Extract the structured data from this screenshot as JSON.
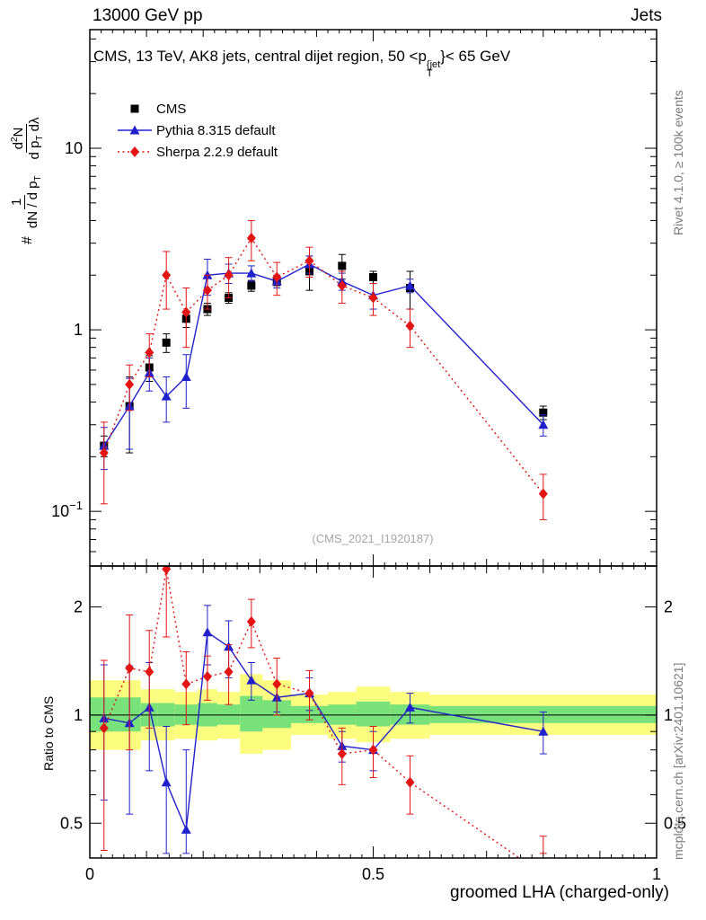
{
  "header": {
    "left": "13000 GeV pp",
    "right": "Jets"
  },
  "title": {
    "prefix": "CMS, 13 TeV, AK8 jets, central dijet region, 50 <p",
    "sup": "{jet",
    "sub": "T",
    "suffix": "}< 65 GeV"
  },
  "legend": [
    {
      "label": "CMS",
      "marker": "square",
      "color": "#000000",
      "line": "none"
    },
    {
      "label": "Pythia 8.315 default",
      "marker": "triangle",
      "color": "#2121cc",
      "line": "solid"
    },
    {
      "label": "Sherpa 2.2.9 default",
      "marker": "diamond",
      "color": "#e31414",
      "line": "dotted"
    }
  ],
  "watermark": "(CMS_2021_I1920187)",
  "side_notes": {
    "top": "Rivet 4.1.0, ≥ 100k events",
    "bottom": "mcplots.cern.ch [arXiv:2401.10621]"
  },
  "axes": {
    "xlabel": "groomed LHA (charged-only)",
    "ratio_ylabel": "Ratio to CMS",
    "ylabel": {
      "prefix": "#",
      "f1_num": "1",
      "f1_den_a": "dN / d p",
      "f1_den_sub": "T",
      "f2_num_a": "d",
      "f2_num_sup": "2",
      "f2_num_b": "N",
      "f2_den_a": "d p",
      "f2_den_sub": "T",
      "f2_den_b": " dλ"
    }
  },
  "colors": {
    "frame": "#000000",
    "watermark": "#a6a6a6",
    "side_text": "#7a7a7a"
  },
  "chart_data": {
    "type": "line",
    "title": "CMS, 13 TeV, AK8 jets, central dijet region, 50 < pT{jet} < 65 GeV",
    "xlabel": "groomed LHA (charged-only)",
    "ylabel": "# 1/(dN/dpT) d2N/(dpT dLambda)",
    "ratio_ylabel": "Ratio to CMS",
    "legend_position": "top-left",
    "grid": false,
    "xlim": [
      0,
      1
    ],
    "main_yscale": "log",
    "main_ylim": [
      0.05,
      45
    ],
    "main_yticks": [
      0.1,
      1,
      10
    ],
    "ratio_yscale": "log",
    "ratio_ylim": [
      0.4,
      2.6
    ],
    "ratio_yticks": [
      0.5,
      1,
      2
    ],
    "x_major_ticks": [
      0,
      0.5,
      1
    ],
    "x": [
      0.025,
      0.07,
      0.105,
      0.135,
      0.17,
      0.2075,
      0.245,
      0.285,
      0.33,
      0.3875,
      0.445,
      0.5,
      0.565,
      0.8
    ],
    "series": [
      {
        "name": "CMS",
        "marker": "square",
        "color": "#000000",
        "line": "none",
        "y": [
          0.23,
          0.38,
          0.62,
          0.85,
          1.15,
          1.3,
          1.5,
          1.75,
          1.85,
          2.1,
          2.25,
          1.95,
          1.7,
          0.35
        ],
        "yerr": [
          0.03,
          0.17,
          0.1,
          0.1,
          0.12,
          0.1,
          0.1,
          0.12,
          0.1,
          0.45,
          0.35,
          0.15,
          0.4,
          0.03
        ]
      },
      {
        "name": "Pythia 8.315 default",
        "marker": "triangle",
        "color": "#2121cc",
        "line": "solid",
        "y": [
          0.23,
          0.38,
          0.58,
          0.43,
          0.55,
          2.0,
          2.05,
          2.05,
          1.85,
          2.3,
          1.85,
          1.55,
          1.75,
          0.3
        ],
        "yerr": [
          0.06,
          0.16,
          0.12,
          0.12,
          0.18,
          0.45,
          0.25,
          0.2,
          0.15,
          0.25,
          0.2,
          0.25,
          0.15,
          0.04
        ],
        "ratio": [
          0.98,
          0.95,
          1.05,
          0.65,
          0.48,
          1.7,
          1.55,
          1.25,
          1.12,
          1.15,
          0.82,
          0.8,
          1.05,
          0.9
        ],
        "ratio_err": [
          0.4,
          0.42,
          0.35,
          0.28,
          0.32,
          0.32,
          0.28,
          0.15,
          0.1,
          0.12,
          0.08,
          0.1,
          0.1,
          0.12
        ]
      },
      {
        "name": "Sherpa 2.2.9 default",
        "marker": "diamond",
        "color": "#e31414",
        "line": "dotted",
        "y": [
          0.21,
          0.5,
          0.75,
          2.0,
          1.25,
          1.65,
          2.0,
          3.2,
          1.95,
          2.4,
          1.75,
          1.5,
          1.05,
          0.125
        ],
        "yerr": [
          0.1,
          0.14,
          0.2,
          0.7,
          0.45,
          0.35,
          0.5,
          0.8,
          0.4,
          0.45,
          0.35,
          0.3,
          0.25,
          0.035
        ],
        "ratio": [
          0.92,
          1.35,
          1.32,
          2.55,
          1.22,
          1.28,
          1.32,
          1.82,
          1.22,
          1.15,
          0.78,
          0.8,
          0.65,
          0.36
        ],
        "ratio_err": [
          0.5,
          0.55,
          0.4,
          0.9,
          0.28,
          0.18,
          0.25,
          0.28,
          0.22,
          0.18,
          0.14,
          0.13,
          0.12,
          0.1
        ]
      }
    ],
    "bands": {
      "edges": [
        0,
        0.05,
        0.09,
        0.12,
        0.15,
        0.19,
        0.225,
        0.265,
        0.305,
        0.355,
        0.42,
        0.47,
        0.53,
        0.6,
        1.0
      ],
      "yellow": [
        [
          0.8,
          1.25
        ],
        [
          0.8,
          1.25
        ],
        [
          0.85,
          1.18
        ],
        [
          0.85,
          1.18
        ],
        [
          0.86,
          1.16
        ],
        [
          0.85,
          1.18
        ],
        [
          0.86,
          1.16
        ],
        [
          0.78,
          1.3
        ],
        [
          0.8,
          1.25
        ],
        [
          0.88,
          1.14
        ],
        [
          0.86,
          1.16
        ],
        [
          0.84,
          1.2
        ],
        [
          0.86,
          1.16
        ],
        [
          0.88,
          1.14
        ]
      ],
      "green": [
        [
          0.9,
          1.12
        ],
        [
          0.9,
          1.12
        ],
        [
          0.93,
          1.08
        ],
        [
          0.93,
          1.08
        ],
        [
          0.94,
          1.07
        ],
        [
          0.93,
          1.08
        ],
        [
          0.94,
          1.07
        ],
        [
          0.9,
          1.13
        ],
        [
          0.92,
          1.1
        ],
        [
          0.95,
          1.06
        ],
        [
          0.94,
          1.07
        ],
        [
          0.93,
          1.09
        ],
        [
          0.94,
          1.07
        ],
        [
          0.95,
          1.06
        ]
      ],
      "yellow_color": "#fcfc7f",
      "green_color": "#79e179"
    }
  }
}
